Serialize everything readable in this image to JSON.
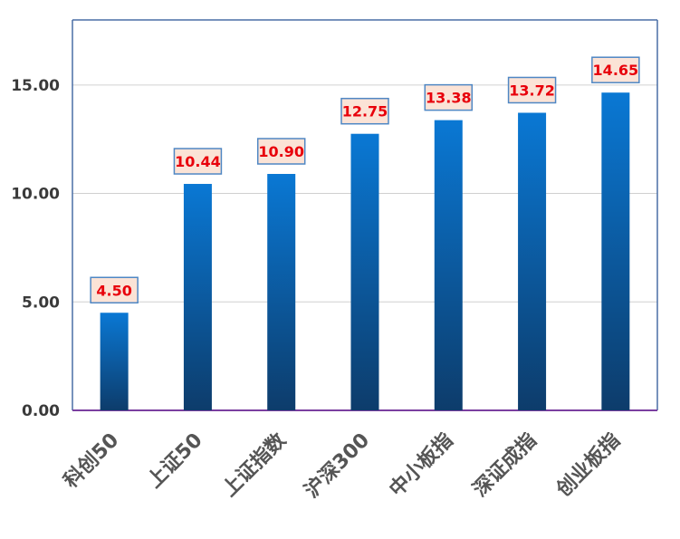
{
  "chart_data": {
    "type": "bar",
    "categories": [
      "科创50",
      "上证50",
      "上证指数",
      "沪深300",
      "中小板指",
      "深证成指",
      "创业板指"
    ],
    "values": [
      4.5,
      10.44,
      10.9,
      12.75,
      13.38,
      13.72,
      14.65
    ],
    "data_labels": [
      "4.50",
      "10.44",
      "10.90",
      "12.75",
      "13.38",
      "13.72",
      "14.65"
    ],
    "title": "",
    "xlabel": "",
    "ylabel": "",
    "ylim": [
      0,
      18
    ],
    "yticks": [
      0,
      5,
      10,
      15
    ],
    "ytick_labels": [
      "0.00",
      "5.00",
      "10.00",
      "15.00"
    ],
    "grid": true,
    "legend": "none",
    "colors": {
      "bar_top": "#0a78d4",
      "bar_bottom": "#0d3c6b",
      "label_fill": "#fbe3d6",
      "label_border": "#4f87c4",
      "label_text": "#e8000b",
      "axis": "#4a6fa5",
      "baseline": "#7b3fa0",
      "grid": "#d0d0d0"
    }
  }
}
